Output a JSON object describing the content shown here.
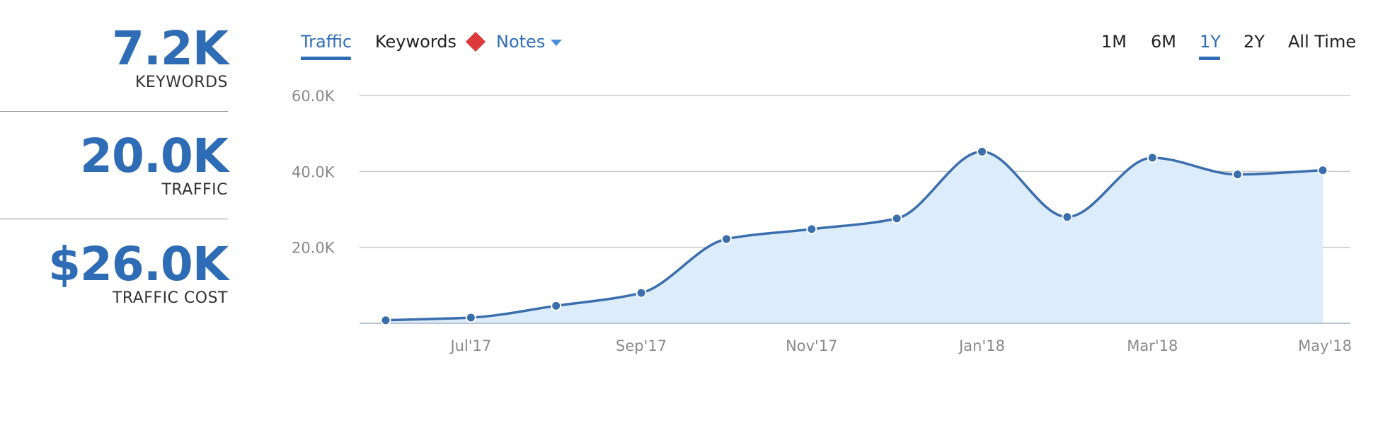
{
  "stats": [
    {
      "value": "7.2K",
      "label": "KEYWORDS"
    },
    {
      "value": "20.0K",
      "label": "TRAFFIC"
    },
    {
      "value": "$26.0K",
      "label": "TRAFFIC COST"
    }
  ],
  "tabs": {
    "traffic": "Traffic",
    "keywords": "Keywords",
    "notes": "Notes",
    "active": "traffic"
  },
  "ranges": {
    "items": [
      "1M",
      "6M",
      "1Y",
      "2Y",
      "All Time"
    ],
    "active": "1Y"
  },
  "colors": {
    "accent": "#2e6db5",
    "line": "#3a6ead",
    "area": "#dcecfb",
    "grid": "#c8c8c8",
    "notes_marker": "#dd3b3b"
  },
  "chart_data": {
    "type": "area",
    "y_ticks": [
      {
        "value": 20000,
        "label": "20.0K"
      },
      {
        "value": 40000,
        "label": "40.0K"
      },
      {
        "value": 60000,
        "label": "60.0K"
      }
    ],
    "ylim": [
      0,
      60000
    ],
    "x_ticks": [
      "Jul'17",
      "Sep'17",
      "Nov'17",
      "Jan'18",
      "Mar'18",
      "May'18"
    ],
    "series": [
      {
        "x": [
          "2017-06",
          "2017-07",
          "2017-08",
          "2017-09",
          "2017-10",
          "2017-11",
          "2017-12",
          "2018-01",
          "2018-02",
          "2018-03",
          "2018-04",
          "2018-05"
        ],
        "values": [
          800,
          1500,
          4600,
          8000,
          22200,
          24800,
          27600,
          45200,
          28000,
          43600,
          39200,
          40300
        ]
      }
    ],
    "grid": true,
    "legend": "none"
  }
}
